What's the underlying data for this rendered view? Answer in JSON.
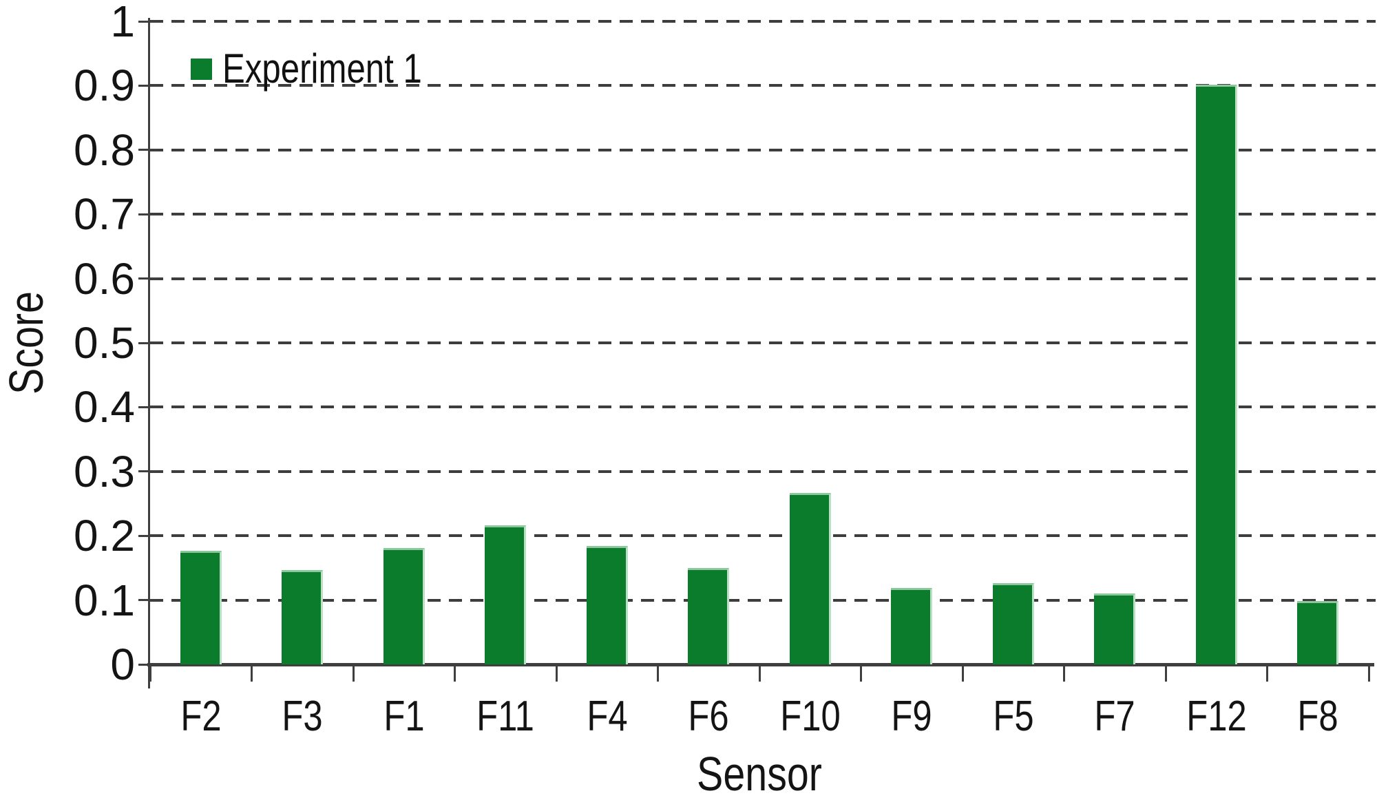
{
  "chart_data": {
    "type": "bar",
    "title": "",
    "categories": [
      "F2",
      "F3",
      "F1",
      "F11",
      "F4",
      "F6",
      "F10",
      "F9",
      "F5",
      "F7",
      "F12",
      "F8"
    ],
    "series": [
      {
        "name": "Experiment 1",
        "values": [
          0.177,
          0.147,
          0.181,
          0.216,
          0.184,
          0.15,
          0.267,
          0.119,
          0.126,
          0.11,
          0.901,
          0.098
        ]
      }
    ],
    "xlabel": "Sensor",
    "ylabel": "Score",
    "ylim": [
      0,
      1
    ],
    "ytick_step": 0.1,
    "ytick_labels": [
      "0",
      "0.1",
      "0.2",
      "0.3",
      "0.4",
      "0.5",
      "0.6",
      "0.7",
      "0.8",
      "0.9",
      "1"
    ],
    "grid": "horizontal-dashed",
    "legend_position": "top-left-inside",
    "colors": {
      "bar_fill": "#0b7c2b",
      "bar_edge_top": "#8cc79d",
      "bar_edge_right": "#b9e0c4",
      "axis": "#3f3f3f",
      "gridline": "#3d3d3d",
      "text": "#141414",
      "background": "#ffffff"
    }
  }
}
